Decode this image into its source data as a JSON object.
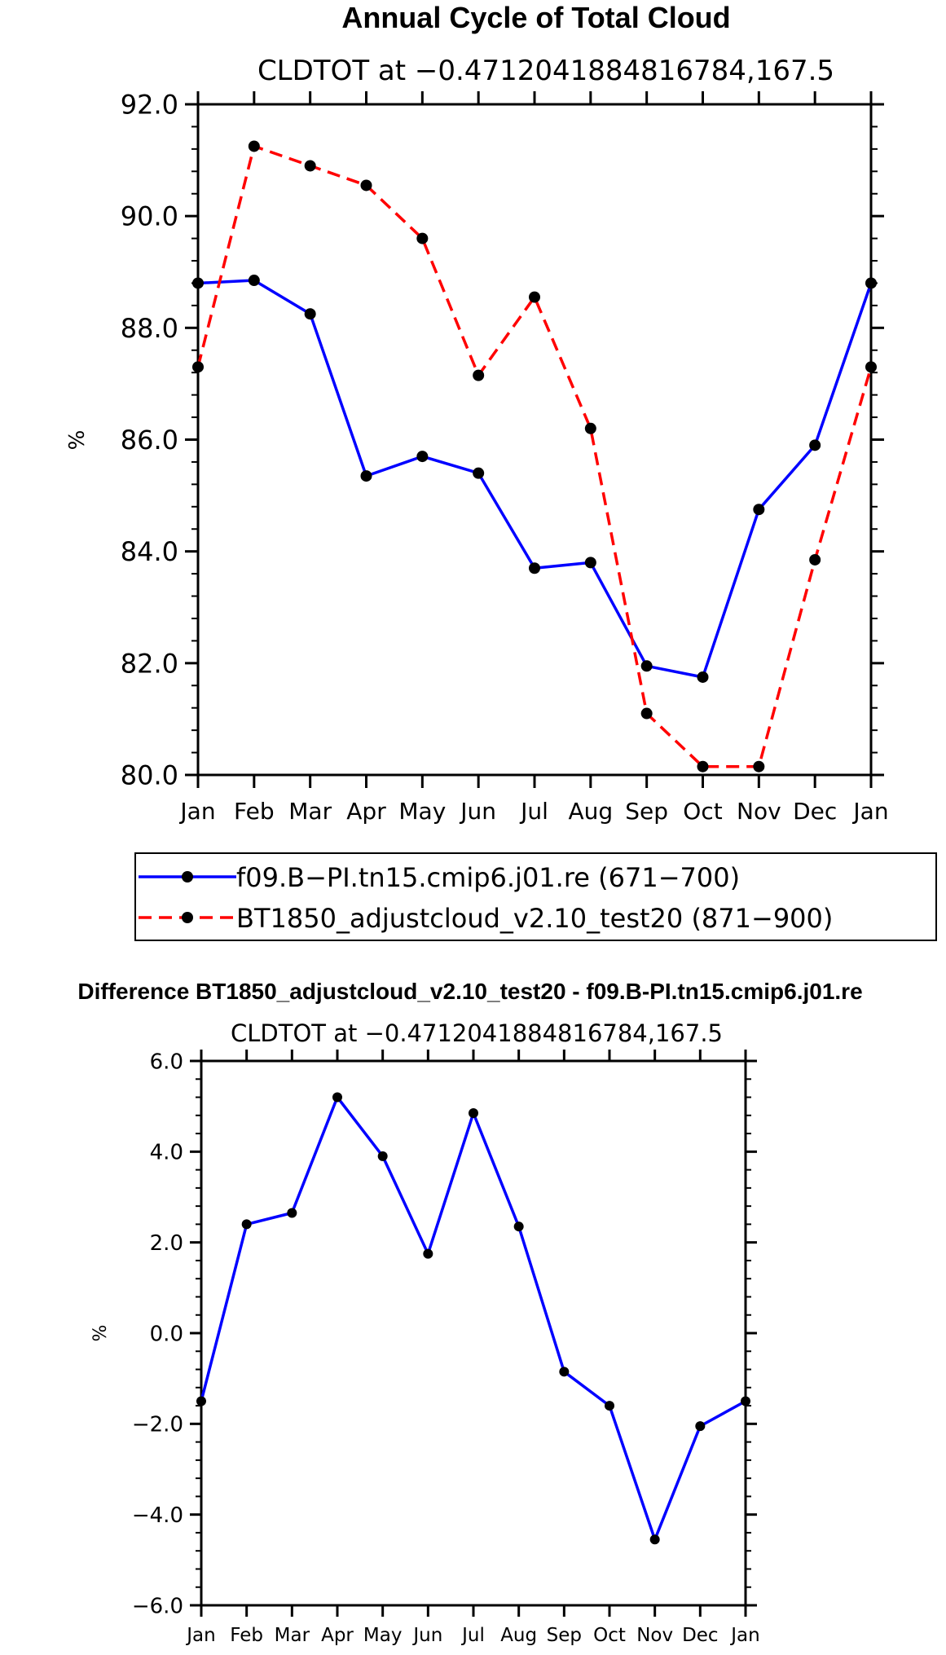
{
  "chart_data": [
    {
      "type": "line",
      "title": "Annual Cycle of Total Cloud",
      "subtitle": "CLDTOT at −0.4712041884816784,167.5",
      "ylabel": "%",
      "xlabel": "",
      "categories": [
        "Jan",
        "Feb",
        "Mar",
        "Apr",
        "May",
        "Jun",
        "Jul",
        "Aug",
        "Sep",
        "Oct",
        "Nov",
        "Dec",
        "Jan"
      ],
      "ylim": [
        80.0,
        92.0
      ],
      "yticks": [
        "80.0",
        "82.0",
        "84.0",
        "86.0",
        "88.0",
        "90.0",
        "92.0"
      ],
      "series": [
        {
          "name": "f09.B−PI.tn15.cmip6.j01.re  (671−700)",
          "color": "#0000ff",
          "style": "solid",
          "values": [
            88.8,
            88.85,
            88.25,
            85.35,
            85.7,
            85.4,
            83.7,
            83.8,
            81.95,
            81.75,
            84.75,
            85.9,
            88.8
          ]
        },
        {
          "name": "BT1850_adjustcloud_v2.10_test20  (871−900)",
          "color": "#ff0000",
          "style": "dashed",
          "values": [
            87.3,
            91.25,
            90.9,
            90.55,
            89.6,
            87.15,
            88.55,
            86.2,
            81.1,
            80.15,
            80.15,
            83.85,
            87.3
          ]
        }
      ]
    },
    {
      "type": "line",
      "title": "Difference BT1850_adjustcloud_v2.10_test20 - f09.B-PI.tn15.cmip6.j01.re",
      "subtitle": "CLDTOT at −0.4712041884816784,167.5",
      "ylabel": "%",
      "xlabel": "",
      "categories": [
        "Jan",
        "Feb",
        "Mar",
        "Apr",
        "May",
        "Jun",
        "Jul",
        "Aug",
        "Sep",
        "Oct",
        "Nov",
        "Dec",
        "Jan"
      ],
      "ylim": [
        -6.0,
        6.0
      ],
      "yticks": [
        "−6.0",
        "−4.0",
        "−2.0",
        "0.0",
        "2.0",
        "4.0",
        "6.0"
      ],
      "series": [
        {
          "name": "Difference",
          "color": "#0000ff",
          "style": "solid",
          "values": [
            -1.5,
            2.4,
            2.65,
            5.2,
            3.9,
            1.75,
            4.85,
            2.35,
            -0.85,
            -1.6,
            -4.55,
            -2.05,
            -1.5
          ]
        }
      ]
    }
  ]
}
